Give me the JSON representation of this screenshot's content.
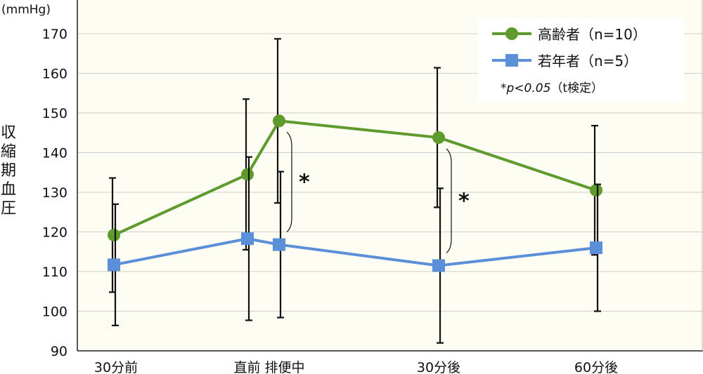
{
  "chart_data": {
    "type": "line",
    "unit_label": "(mmHg)",
    "ylabel": "収縮期血圧",
    "ylim": [
      90,
      170
    ],
    "yticks": [
      90,
      100,
      110,
      120,
      130,
      140,
      150,
      160,
      170
    ],
    "categories": [
      "30分前",
      "直前",
      "排便中",
      "30分後",
      "60分後"
    ],
    "x_tick_labels": [
      "30分前",
      "直前 排便中",
      "30分後",
      "60分後"
    ],
    "grid": "horizontal",
    "plot_background": "#fdfdf3",
    "legend_position": "top-right",
    "series": [
      {
        "name": "高齢者（n=10）",
        "color": "#5e9a2c",
        "marker": "circle",
        "values": [
          119.2,
          134.5,
          148.0,
          143.8,
          130.5
        ],
        "error": [
          14.4,
          19.0,
          20.7,
          17.6,
          16.3
        ]
      },
      {
        "name": "若年者（n=5）",
        "color": "#5b8fd8",
        "marker": "square",
        "values": [
          111.7,
          118.3,
          116.8,
          111.5,
          116.0
        ],
        "error": [
          15.3,
          20.6,
          18.4,
          19.5,
          16.0
        ]
      }
    ],
    "significance": [
      {
        "category": "排便中",
        "label": "*"
      },
      {
        "category": "30分後",
        "label": "*"
      }
    ],
    "note": {
      "prefix": "*",
      "p_text": "p<0.05",
      "suffix": "（t検定）"
    }
  }
}
